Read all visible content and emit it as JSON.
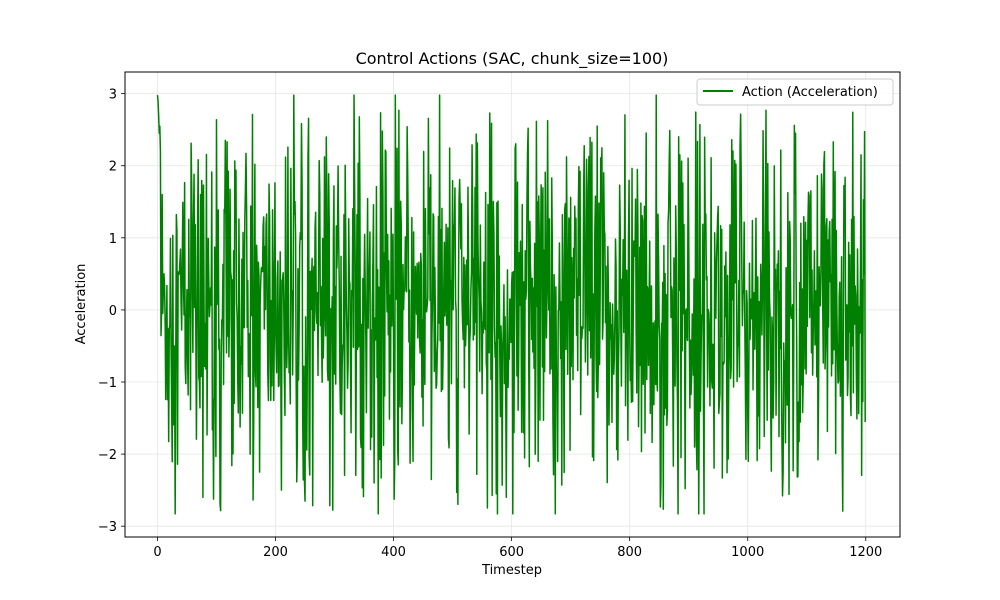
{
  "chart_data": {
    "type": "line",
    "title": "Control Actions (SAC, chunk_size=100)",
    "xlabel": "Timestep",
    "ylabel": "Acceleration",
    "xlim": [
      -55,
      1258
    ],
    "ylim": [
      -3.15,
      3.3
    ],
    "xticks": [
      0,
      200,
      400,
      600,
      800,
      1000,
      1200
    ],
    "yticks": [
      -3,
      -2,
      -1,
      0,
      1,
      2,
      3
    ],
    "xtick_labels": [
      "0",
      "200",
      "400",
      "600",
      "800",
      "1000",
      "1200"
    ],
    "ytick_labels": [
      "−3",
      "−2",
      "−1",
      "0",
      "1",
      "2",
      "3"
    ],
    "grid": true,
    "legend_position": "top-right",
    "series": [
      {
        "name": "Action (Acceleration)",
        "color": "#008000",
        "n_points": 1200,
        "x_start": 0,
        "x_end": 1199,
        "min": -2.83,
        "max": 2.98,
        "first_values": [
          2.98,
          2.9,
          2.7,
          2.45,
          2.55,
          2.2
        ],
        "note": "rapidly oscillating signal between about -2.8 and 3.0, roughly centred on 0"
      }
    ]
  }
}
